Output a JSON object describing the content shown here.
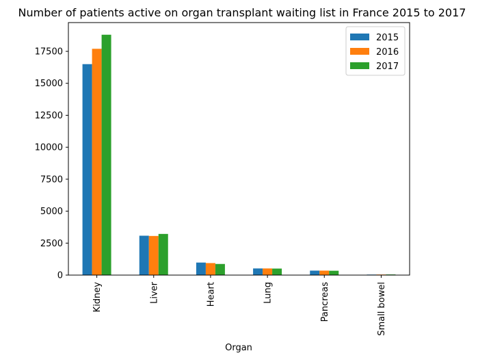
{
  "chart_data": {
    "type": "bar",
    "title": "Number of patients active on organ transplant waiting list in France 2015 to 2017",
    "xlabel": "Organ",
    "ylabel": "",
    "categories": [
      "Kidney",
      "Liver",
      "Heart",
      "Lung",
      "Pancreas",
      "Small bowel"
    ],
    "series": [
      {
        "name": "2015",
        "color": "#1f77b4",
        "values": [
          16500,
          3080,
          980,
          520,
          350,
          40
        ]
      },
      {
        "name": "2016",
        "color": "#ff7f0e",
        "values": [
          17700,
          3060,
          940,
          520,
          350,
          45
        ]
      },
      {
        "name": "2017",
        "color": "#2ca02c",
        "values": [
          18800,
          3220,
          870,
          510,
          340,
          50
        ]
      }
    ],
    "yticks": [
      "0",
      "2500",
      "5000",
      "7500",
      "10000",
      "12500",
      "15000",
      "17500"
    ],
    "ylim": [
      0,
      19750
    ],
    "grid": false,
    "legend_position": "top-right"
  }
}
